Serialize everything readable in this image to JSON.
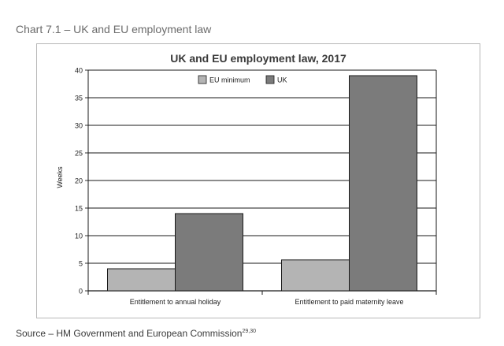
{
  "caption": "Chart 7.1 – UK and EU employment law",
  "source_text": "Source – HM Government and European Commission",
  "source_refs": "29,30",
  "chart_data": {
    "type": "bar",
    "title": "UK and EU employment law, 2017",
    "xlabel": "",
    "ylabel": "Weeks",
    "ylim": [
      0,
      40
    ],
    "yticks": [
      0,
      5,
      10,
      15,
      20,
      25,
      30,
      35,
      40
    ],
    "grid": true,
    "legend_position": "top-center",
    "categories": [
      "Entitlement to annual holiday",
      "Entitlement to paid maternity leave"
    ],
    "series": [
      {
        "name": "EU minimum",
        "color": "#b4b4b4",
        "values": [
          4,
          5.6
        ]
      },
      {
        "name": "UK",
        "color": "#7b7b7b",
        "values": [
          14,
          39
        ]
      }
    ]
  }
}
